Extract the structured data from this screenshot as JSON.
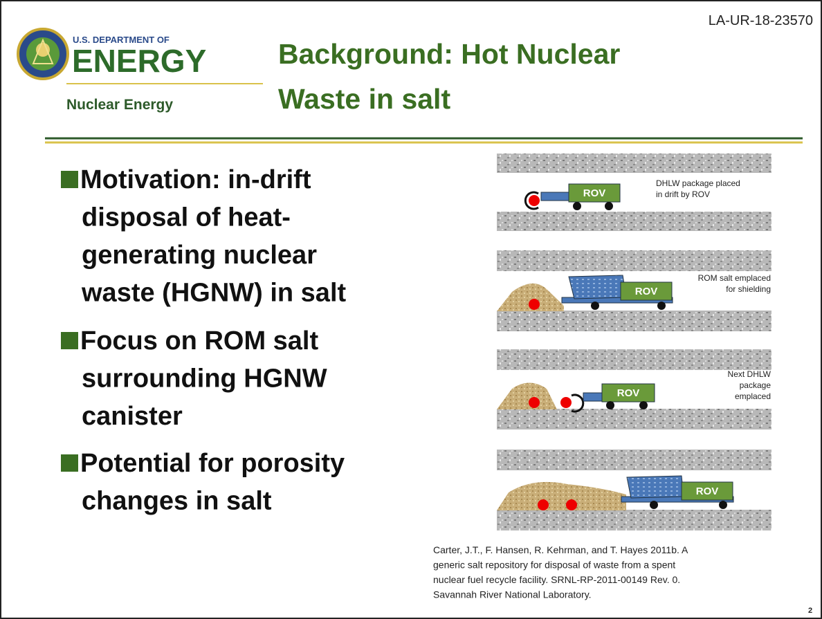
{
  "report_id": "LA-UR-18-23570",
  "logo": {
    "agency_line": "U.S. DEPARTMENT OF",
    "agency": "ENERGY",
    "office": "Nuclear Energy"
  },
  "title_lines": [
    "Background: Hot Nuclear",
    "Waste in salt"
  ],
  "bullets": [
    {
      "lines": [
        "Motivation: in-drift",
        "disposal of heat-",
        "generating nuclear",
        "waste (HGNW)  in salt"
      ]
    },
    {
      "lines": [
        "Focus on ROM salt",
        "surrounding HGNW",
        "canister"
      ]
    },
    {
      "lines": [
        "Potential for porosity",
        "changes in salt"
      ]
    }
  ],
  "diagram": {
    "panels": [
      {
        "caption_lines": [
          "DHLW package placed",
          "in drift by ROV"
        ],
        "vehicle": "ROV"
      },
      {
        "caption_lines": [
          "ROM salt emplaced",
          "for shielding"
        ],
        "vehicle": "ROV"
      },
      {
        "caption_lines": [
          "Next DHLW",
          "package",
          "emplaced"
        ],
        "vehicle": "ROV"
      },
      {
        "vehicle": "ROV"
      }
    ]
  },
  "citation_lines": [
    "Carter, J.T., F. Hansen, R. Kehrman,  and T. Hayes 2011b. A",
    "generic salt repository  for disposal of waste  from  a spent",
    "nuclear fuel recycle facility. SRNL-RP-2011-00149  Rev. 0.",
    "Savannah   River National Laboratory."
  ],
  "page_number": "2"
}
